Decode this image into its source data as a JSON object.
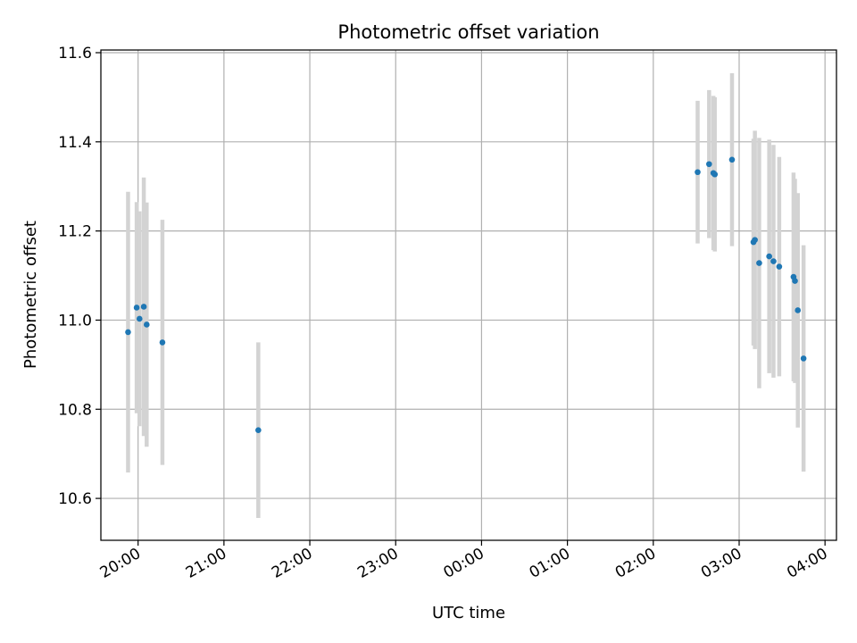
{
  "chart_data": {
    "type": "scatter",
    "title": "Photometric offset variation",
    "xlabel": "UTC time",
    "ylabel": "Photometric offset",
    "x_axis_kind": "time",
    "xlim": [
      "19:34",
      "04:08"
    ],
    "ylim": [
      10.506,
      11.606
    ],
    "x_ticks": [
      "20:00",
      "21:00",
      "22:00",
      "23:00",
      "00:00",
      "01:00",
      "02:00",
      "03:00",
      "04:00"
    ],
    "y_ticks": [
      "10.6",
      "10.8",
      "11.0",
      "11.2",
      "11.4",
      "11.6"
    ],
    "grid": true,
    "colors": {
      "marker": "#1f77b4",
      "errorbar": "#d3d3d3",
      "grid": "#b0b0b0"
    },
    "series": [
      {
        "points": [
          {
            "time": "19:53",
            "y": 10.973,
            "err": 0.315
          },
          {
            "time": "19:59",
            "y": 11.028,
            "err": 0.237
          },
          {
            "time": "20:01",
            "y": 11.003,
            "err": 0.241
          },
          {
            "time": "20:04",
            "y": 11.03,
            "err": 0.29
          },
          {
            "time": "20:06",
            "y": 10.99,
            "err": 0.274
          },
          {
            "time": "20:17",
            "y": 10.95,
            "err": 0.275
          },
          {
            "time": "21:24",
            "y": 10.753,
            "err": 0.197
          },
          {
            "time": "02:31",
            "y": 11.332,
            "err": 0.16
          },
          {
            "time": "02:39",
            "y": 11.35,
            "err": 0.166
          },
          {
            "time": "02:42",
            "y": 11.33,
            "err": 0.173
          },
          {
            "time": "02:43",
            "y": 11.327,
            "err": 0.173
          },
          {
            "time": "02:55",
            "y": 11.36,
            "err": 0.194
          },
          {
            "time": "03:10",
            "y": 11.175,
            "err": 0.232
          },
          {
            "time": "03:11",
            "y": 11.18,
            "err": 0.245
          },
          {
            "time": "03:14",
            "y": 11.128,
            "err": 0.281
          },
          {
            "time": "03:21",
            "y": 11.143,
            "err": 0.262
          },
          {
            "time": "03:24",
            "y": 11.132,
            "err": 0.261
          },
          {
            "time": "03:28",
            "y": 11.12,
            "err": 0.246
          },
          {
            "time": "03:38",
            "y": 11.097,
            "err": 0.234
          },
          {
            "time": "03:39",
            "y": 11.088,
            "err": 0.229
          },
          {
            "time": "03:41",
            "y": 11.022,
            "err": 0.263
          },
          {
            "time": "03:45",
            "y": 10.914,
            "err": 0.254
          }
        ]
      }
    ]
  }
}
